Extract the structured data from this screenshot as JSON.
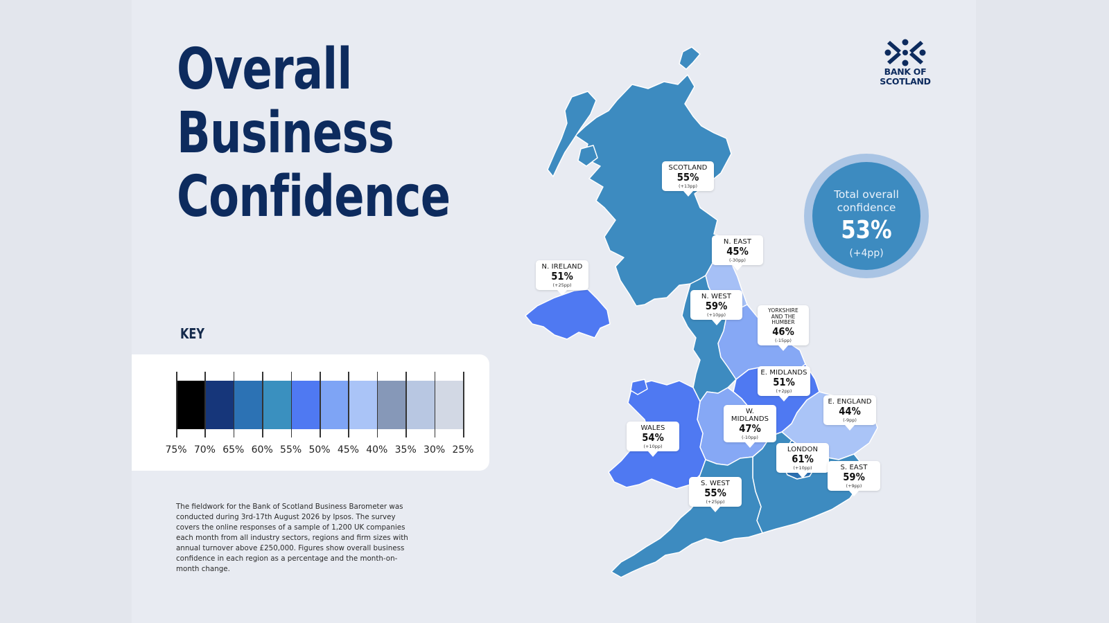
{
  "title": {
    "line1": "Overall",
    "line2": "Business",
    "line3": "Confidence"
  },
  "key": {
    "label": "KEY",
    "scale": [
      {
        "value": "75%",
        "color": "#000000"
      },
      {
        "value": "70%",
        "color": "#16367a"
      },
      {
        "value": "65%",
        "color": "#2c72b4"
      },
      {
        "value": "60%",
        "color": "#3a90bf"
      },
      {
        "value": "55%",
        "color": "#4f79f2"
      },
      {
        "value": "50%",
        "color": "#7ea4f5"
      },
      {
        "value": "45%",
        "color": "#aac4f7"
      },
      {
        "value": "40%",
        "color": "#8698b8"
      },
      {
        "value": "35%",
        "color": "#b8c7e2"
      },
      {
        "value": "30%",
        "color": "#d2d8e4"
      },
      {
        "value": "25%",
        "color": ""
      }
    ]
  },
  "footnote": "The fieldwork for the Bank of Scotland Business Barometer was conducted during 3rd-17th August 2026 by Ipsos. The survey covers the online responses of a sample of 1,200 UK companies each month from all industry sectors, regions and firm sizes with annual turnover above £250,000. Figures show overall business confidence in each region as a percentage and the month-on-month change.",
  "logo": {
    "line1": "BANK OF",
    "line2": "SCOTLAND",
    "icon": "saltire-icon",
    "color": "#0d2b5e"
  },
  "total": {
    "label_line1": "Total overall",
    "label_line2": "confidence",
    "value": "53%",
    "change": "(+4pp)"
  },
  "regions": [
    {
      "id": "scotland",
      "name": "SCOTLAND",
      "value": "55%",
      "change": "(+13pp)",
      "fill": "#3d8bc0"
    },
    {
      "id": "n-ireland",
      "name": "N. IRELAND",
      "value": "51%",
      "change": "(+25pp)",
      "fill": "#4f79f2"
    },
    {
      "id": "n-east",
      "name": "N. EAST",
      "value": "45%",
      "change": "(-30pp)",
      "fill": "#a6c0f6"
    },
    {
      "id": "n-west",
      "name": "N. WEST",
      "value": "59%",
      "change": "(+10pp)",
      "fill": "#3d8bc0"
    },
    {
      "id": "yorkshire",
      "name_line1": "YORKSHIRE",
      "name_line2": "AND THE HUMBER",
      "value": "46%",
      "change": "(-15pp)",
      "fill": "#86a8f5"
    },
    {
      "id": "e-midlands",
      "name": "E. MIDLANDS",
      "value": "51%",
      "change": "(+2pp)",
      "fill": "#4f79f2"
    },
    {
      "id": "w-midlands",
      "name": "W. MIDLANDS",
      "value": "47%",
      "change": "(-10pp)",
      "fill": "#86a8f5"
    },
    {
      "id": "wales",
      "name": "WALES",
      "value": "54%",
      "change": "(+10pp)",
      "fill": "#4f79f2"
    },
    {
      "id": "e-england",
      "name": "E. ENGLAND",
      "value": "44%",
      "change": "(-9pp)",
      "fill": "#aac4f7"
    },
    {
      "id": "london",
      "name": "LONDON",
      "value": "61%",
      "change": "(+10pp)",
      "fill": "#2c72b4"
    },
    {
      "id": "s-east",
      "name": "S. EAST",
      "value": "59%",
      "change": "(+9pp)",
      "fill": "#3d8bc0"
    },
    {
      "id": "s-west",
      "name": "S. WEST",
      "value": "55%",
      "change": "(+25pp)",
      "fill": "#3d8bc0"
    }
  ]
}
